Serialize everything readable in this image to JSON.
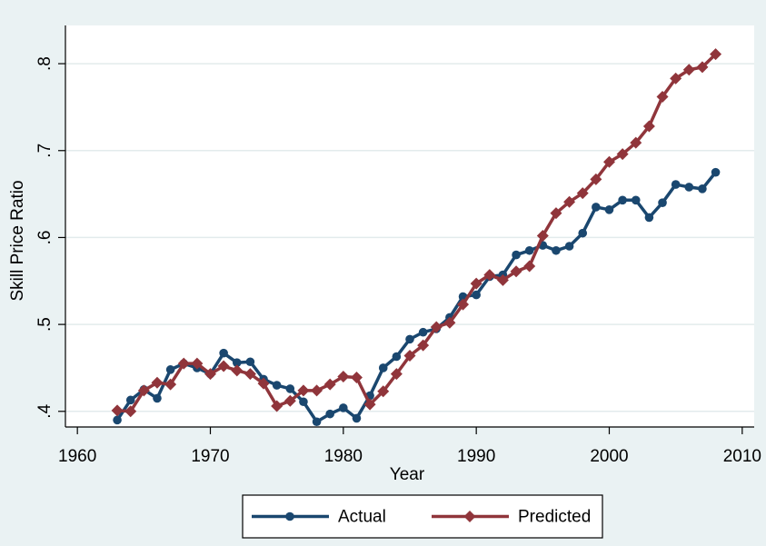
{
  "chart_data": {
    "type": "line",
    "xlabel": "Year",
    "ylabel": "Skill Price Ratio",
    "x": [
      1963,
      1964,
      1965,
      1966,
      1967,
      1968,
      1969,
      1970,
      1971,
      1972,
      1973,
      1974,
      1975,
      1976,
      1977,
      1978,
      1979,
      1980,
      1981,
      1982,
      1983,
      1984,
      1985,
      1986,
      1987,
      1988,
      1989,
      1990,
      1991,
      1992,
      1993,
      1994,
      1995,
      1996,
      1997,
      1998,
      1999,
      2000,
      2001,
      2002,
      2003,
      2004,
      2005,
      2006,
      2007,
      2008
    ],
    "series": [
      {
        "name": "Actual",
        "color": "#1a476f",
        "marker": "circle",
        "values": [
          0.39,
          0.413,
          0.425,
          0.415,
          0.448,
          0.455,
          0.45,
          0.443,
          0.467,
          0.456,
          0.457,
          0.437,
          0.43,
          0.426,
          0.411,
          0.388,
          0.397,
          0.404,
          0.392,
          0.418,
          0.45,
          0.463,
          0.483,
          0.491,
          0.495,
          0.508,
          0.532,
          0.534,
          0.555,
          0.557,
          0.58,
          0.585,
          0.591,
          0.585,
          0.59,
          0.605,
          0.635,
          0.632,
          0.643,
          0.643,
          0.623,
          0.64,
          0.661,
          0.658,
          0.656,
          0.675
        ]
      },
      {
        "name": "Predicted",
        "color": "#90353b",
        "marker": "diamond",
        "values": [
          0.401,
          0.4,
          0.424,
          0.433,
          0.431,
          0.455,
          0.455,
          0.443,
          0.452,
          0.447,
          0.443,
          0.432,
          0.406,
          0.412,
          0.424,
          0.424,
          0.431,
          0.44,
          0.439,
          0.408,
          0.423,
          0.443,
          0.464,
          0.476,
          0.497,
          0.502,
          0.523,
          0.547,
          0.557,
          0.551,
          0.561,
          0.567,
          0.602,
          0.628,
          0.641,
          0.651,
          0.667,
          0.687,
          0.696,
          0.709,
          0.728,
          0.762,
          0.783,
          0.793,
          0.796,
          0.811
        ]
      }
    ],
    "xlim": [
      1959.1,
      2010.9
    ],
    "xticks": [
      1960,
      1970,
      1980,
      1990,
      2000,
      2010
    ],
    "ylim": [
      0.382,
      0.844
    ],
    "yticks": [
      {
        "value": 0.4,
        "label": ".4"
      },
      {
        "value": 0.5,
        "label": ".5"
      },
      {
        "value": 0.6,
        "label": ".6"
      },
      {
        "value": 0.7,
        "label": ".7"
      },
      {
        "value": 0.8,
        "label": ".8"
      }
    ],
    "grid": true,
    "legend": "bottom"
  }
}
